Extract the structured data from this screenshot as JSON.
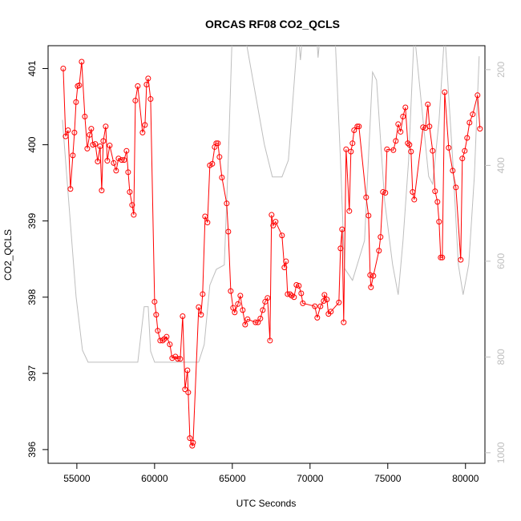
{
  "chart_data": {
    "type": "line",
    "title": "ORCAS RF08 CO2_QCLS",
    "x_label": "UTC Seconds",
    "y_label": "CO2_QCLS",
    "xlim": [
      53150,
      81250
    ],
    "xticks": [
      55000,
      60000,
      65000,
      70000,
      75000,
      80000
    ],
    "ylim": [
      395.82,
      401.3
    ],
    "yticks": [
      396,
      397,
      398,
      399,
      400,
      401
    ],
    "y2lim": [
      1022,
      150
    ],
    "y2ticks": [
      200,
      400,
      600,
      800,
      1000
    ],
    "y2_color": "#bebebe",
    "series": [
      {
        "color": "#bebebe",
        "axis": "y2",
        "marker": "none",
        "x": [
          54072,
          54948,
          55361,
          55722,
          58918,
          59330,
          59588,
          59743,
          60000,
          62835,
          63196,
          63557,
          63970,
          64485,
          64743,
          65000,
          65773,
          67062,
          67577,
          68196,
          68608,
          69227,
          69382,
          69537,
          70413,
          70516,
          70670,
          71598,
          71960,
          72218,
          72733,
          73507,
          74022,
          74280,
          74795,
          75311,
          75672,
          75981,
          76342,
          76703,
          77115,
          77631,
          77888,
          78301,
          78661,
          79177,
          79538,
          79847,
          80208,
          80569,
          80878
        ],
        "values": [
          305,
          674,
          786,
          811,
          811,
          695,
          695,
          788,
          811,
          811,
          774,
          650,
          617,
          608,
          389,
          120,
          120,
          356,
          424,
          424,
          389,
          120,
          180,
          120,
          120,
          175,
          120,
          120,
          389,
          615,
          640,
          557,
          205,
          222,
          473,
          607,
          670,
          557,
          389,
          120,
          255,
          423,
          439,
          305,
          120,
          389,
          607,
          670,
          607,
          423,
          172
        ]
      },
      {
        "color": "#ff0000",
        "marker": "circle",
        "x": [
          54124,
          54278,
          54433,
          54588,
          54742,
          54845,
          54948,
          55052,
          55155,
          55309,
          55515,
          55670,
          55825,
          55928,
          56031,
          56186,
          56340,
          56495,
          56598,
          56701,
          56856,
          56959,
          57114,
          57371,
          57526,
          57681,
          57887,
          58041,
          58196,
          58299,
          58402,
          58557,
          58660,
          58763,
          58918,
          59227,
          59382,
          59485,
          59588,
          59743,
          60000,
          60103,
          60207,
          60361,
          60516,
          60619,
          60774,
          60980,
          61134,
          61341,
          61495,
          61650,
          61805,
          61959,
          62114,
          62165,
          62269,
          62423,
          62475,
          62836,
          62990,
          63093,
          63248,
          63403,
          63557,
          63712,
          63867,
          63970,
          64073,
          64176,
          64331,
          64640,
          64743,
          64898,
          65052,
          65155,
          65362,
          65516,
          65671,
          65826,
          65980,
          66496,
          66650,
          66805,
          66960,
          67114,
          67269,
          67424,
          67527,
          67630,
          67784,
          68197,
          68351,
          68455,
          68558,
          68712,
          68815,
          68970,
          69125,
          69279,
          69434,
          69537,
          70310,
          70465,
          70671,
          70877,
          70929,
          71084,
          71187,
          71341,
          71857,
          71960,
          72063,
          72166,
          72321,
          72527,
          72630,
          72733,
          72836,
          73042,
          73145,
          73610,
          73764,
          73867,
          73919,
          74073,
          74434,
          74537,
          74692,
          74846,
          74950,
          75362,
          75516,
          75671,
          75826,
          75980,
          76135,
          76290,
          76393,
          76496,
          76599,
          76703,
          77270,
          77424,
          77579,
          77682,
          77888,
          78043,
          78197,
          78301,
          78404,
          78507,
          78662,
          78919,
          79177,
          79383,
          79692,
          79795,
          79950,
          80105,
          80260,
          80466,
          80775,
          80930
        ],
        "values": [
          401.0,
          400.11,
          400.19,
          399.42,
          399.86,
          400.16,
          400.56,
          400.77,
          400.78,
          401.09,
          400.37,
          399.95,
          400.13,
          400.21,
          400.0,
          400.01,
          399.78,
          399.98,
          399.4,
          400.05,
          400.24,
          399.79,
          399.99,
          399.76,
          399.66,
          399.82,
          399.8,
          399.8,
          399.92,
          399.64,
          399.38,
          399.21,
          399.08,
          400.58,
          400.77,
          400.16,
          400.26,
          400.79,
          400.87,
          400.6,
          397.94,
          397.77,
          397.56,
          397.43,
          397.43,
          397.45,
          397.48,
          397.38,
          397.2,
          397.22,
          397.19,
          397.19,
          397.75,
          396.79,
          397.04,
          396.75,
          396.15,
          396.05,
          396.09,
          397.87,
          397.77,
          398.04,
          399.06,
          398.98,
          399.73,
          399.75,
          399.97,
          400.02,
          400.02,
          399.84,
          399.57,
          399.23,
          398.86,
          398.08,
          397.86,
          397.8,
          397.91,
          398.02,
          397.83,
          397.64,
          397.71,
          397.67,
          397.67,
          397.72,
          397.83,
          397.94,
          397.99,
          397.43,
          399.08,
          398.94,
          398.99,
          398.81,
          398.39,
          398.47,
          398.04,
          398.04,
          398.02,
          398.0,
          398.16,
          398.15,
          398.05,
          397.92,
          397.88,
          397.73,
          397.88,
          397.95,
          398.03,
          397.97,
          397.78,
          397.81,
          397.93,
          398.64,
          398.89,
          397.67,
          399.94,
          399.13,
          399.91,
          400.02,
          400.19,
          400.24,
          400.24,
          399.31,
          399.07,
          398.29,
          398.13,
          398.28,
          398.61,
          398.79,
          399.38,
          399.37,
          399.94,
          399.93,
          400.05,
          400.27,
          400.17,
          400.37,
          400.49,
          400.02,
          400.0,
          399.91,
          399.38,
          399.28,
          400.23,
          400.22,
          400.53,
          400.24,
          399.92,
          399.39,
          399.25,
          398.99,
          398.52,
          398.52,
          400.69,
          399.96,
          399.66,
          399.44,
          398.49,
          399.82,
          399.92,
          400.09,
          400.29,
          400.4,
          400.65,
          400.21
        ]
      }
    ]
  }
}
